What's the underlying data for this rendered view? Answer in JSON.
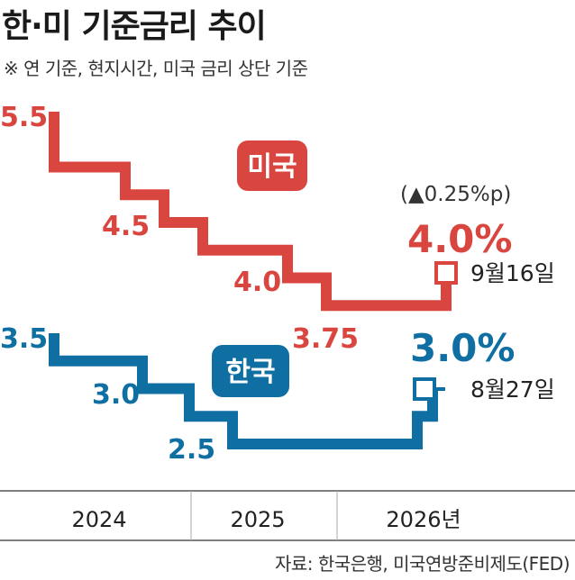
{
  "title": "한·미 기준금리 추이",
  "subtitle": "※ 연 기준, 현지시간, 미국 금리 상단 기준",
  "source": "자료: 한국은행, 미국연방준비제도(FED)",
  "colors": {
    "us": "#d9453f",
    "kr": "#0f6fa3"
  },
  "chart_data": {
    "type": "line",
    "x_labels": [
      "2024",
      "2025",
      "2026년"
    ],
    "series": [
      {
        "name": "미국",
        "step_values": [
          5.5,
          5.0,
          4.75,
          4.5,
          4.25,
          4.0,
          3.75,
          4.0
        ],
        "value_labels": [
          "5.5",
          "4.5",
          "4.0",
          "3.75"
        ],
        "latest": {
          "value": "4.0%",
          "change": "(▲0.25%p)",
          "date": "9월16일"
        }
      },
      {
        "name": "한국",
        "step_values": [
          3.5,
          3.25,
          3.0,
          2.75,
          2.5,
          2.75,
          3.0
        ],
        "value_labels": [
          "3.5",
          "3.0",
          "2.5"
        ],
        "latest": {
          "value": "3.0%",
          "date": "8월27일"
        }
      }
    ]
  }
}
